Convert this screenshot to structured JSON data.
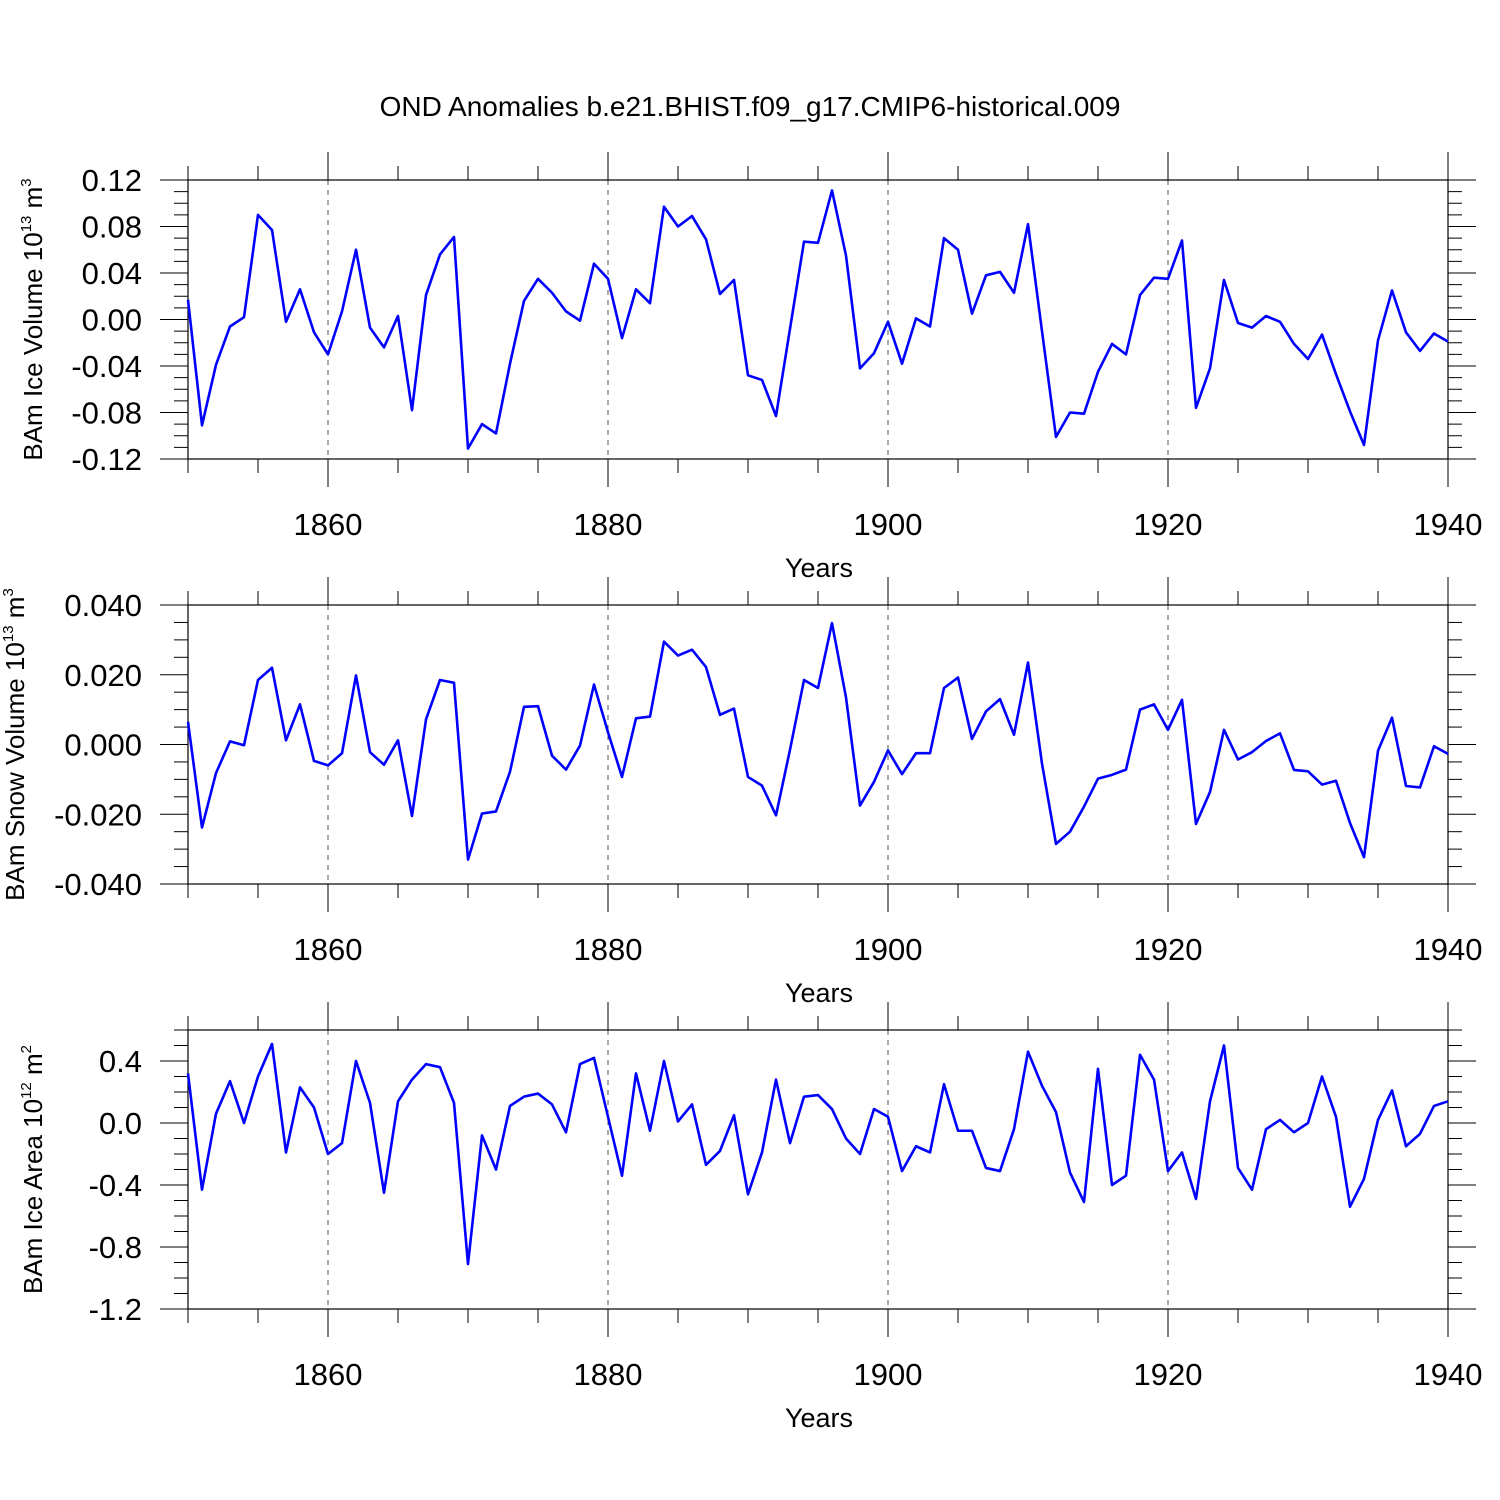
{
  "title": "OND Anomalies b.e21.BHIST.f09_g17.CMIP6-historical.009",
  "line_color": "#0000ff",
  "chart_data": [
    {
      "type": "line",
      "ylabel": {
        "main": "BAm Ice Volume 10",
        "exp": "13",
        "unit": " m",
        "unit_exp": "3"
      },
      "xlabel": "Years",
      "xlim": [
        1850,
        1940
      ],
      "xticks": [
        "1860",
        "1880",
        "1900",
        "1920",
        "1940"
      ],
      "ylim": [
        -0.12,
        0.12
      ],
      "yticks": [
        "-0.12",
        "-0.08",
        "-0.04",
        "0.00",
        "0.04",
        "0.08",
        "0.12"
      ],
      "start_year": 1850,
      "values": [
        0.017,
        -0.091,
        -0.039,
        -0.006,
        0.002,
        0.09,
        0.077,
        -0.002,
        0.026,
        -0.011,
        -0.03,
        0.007,
        0.06,
        -0.007,
        -0.024,
        0.003,
        -0.078,
        0.021,
        0.056,
        0.071,
        -0.111,
        -0.09,
        -0.098,
        -0.038,
        0.016,
        0.035,
        0.023,
        0.007,
        -0.001,
        0.048,
        0.035,
        -0.016,
        0.026,
        0.014,
        0.097,
        0.08,
        0.089,
        0.069,
        0.022,
        0.034,
        -0.048,
        -0.052,
        -0.083,
        -0.008,
        0.067,
        0.066,
        0.111,
        0.055,
        -0.042,
        -0.029,
        -0.002,
        -0.038,
        0.001,
        -0.006,
        0.07,
        0.06,
        0.005,
        0.038,
        0.041,
        0.023,
        0.082,
        -0.01,
        -0.101,
        -0.08,
        -0.081,
        -0.045,
        -0.021,
        -0.03,
        0.021,
        0.036,
        0.035,
        0.068,
        -0.076,
        -0.042,
        0.034,
        -0.003,
        -0.007,
        0.003,
        -0.002,
        -0.021,
        -0.034,
        -0.013,
        -0.047,
        -0.079,
        -0.108,
        -0.018,
        0.025,
        -0.011,
        -0.027,
        -0.012,
        -0.019
      ]
    },
    {
      "type": "line",
      "ylabel": {
        "main": "BAm Snow Volume 10",
        "exp": "13",
        "unit": " m",
        "unit_exp": "3"
      },
      "xlabel": "Years",
      "xlim": [
        1850,
        1940
      ],
      "xticks": [
        "1860",
        "1880",
        "1900",
        "1920",
        "1940"
      ],
      "ylim": [
        -0.04,
        0.04
      ],
      "yticks": [
        "-0.040",
        "-0.020",
        "0.000",
        "0.020",
        "0.040"
      ],
      "start_year": 1850,
      "values": [
        0.0065,
        -0.0238,
        -0.0082,
        0.0009,
        -0.0002,
        0.0185,
        0.022,
        0.0012,
        0.0115,
        -0.0047,
        -0.006,
        -0.0025,
        0.0198,
        -0.0022,
        -0.0058,
        0.0012,
        -0.0205,
        0.0072,
        0.0185,
        0.0177,
        -0.033,
        -0.0198,
        -0.0192,
        -0.0078,
        0.0108,
        0.011,
        -0.0032,
        -0.0072,
        -0.0003,
        0.0172,
        0.0035,
        -0.0093,
        0.0075,
        0.008,
        0.0295,
        0.0255,
        0.0272,
        0.0222,
        0.0085,
        0.0103,
        -0.0093,
        -0.0118,
        -0.0203,
        -0.0015,
        0.0185,
        0.0162,
        0.0348,
        0.0135,
        -0.0175,
        -0.0107,
        -0.0017,
        -0.0085,
        -0.0025,
        -0.0025,
        0.0162,
        0.0192,
        0.0016,
        0.0095,
        0.013,
        0.0028,
        0.0235,
        -0.0055,
        -0.0285,
        -0.025,
        -0.0178,
        -0.0098,
        -0.0087,
        -0.0072,
        0.01,
        0.0115,
        0.0042,
        0.0128,
        -0.0228,
        -0.0136,
        0.0042,
        -0.0043,
        -0.0022,
        0.001,
        0.0032,
        -0.0073,
        -0.0077,
        -0.0115,
        -0.0104,
        -0.0225,
        -0.0323,
        -0.0018,
        0.0077,
        -0.0119,
        -0.0123,
        -0.0005,
        -0.0027
      ]
    },
    {
      "type": "line",
      "ylabel": {
        "main": "BAm Ice Area 10",
        "exp": "12",
        "unit": " m",
        "unit_exp": "2"
      },
      "xlabel": "Years",
      "xlim": [
        1850,
        1940
      ],
      "xticks": [
        "1860",
        "1880",
        "1900",
        "1920",
        "1940"
      ],
      "ylim": [
        -1.2,
        0.6
      ],
      "yticks": [
        "-1.2",
        "-0.8",
        "-0.4",
        "0.0",
        "0.4"
      ],
      "start_year": 1850,
      "values": [
        0.32,
        -0.43,
        0.06,
        0.27,
        0.0,
        0.3,
        0.51,
        -0.19,
        0.23,
        0.1,
        -0.2,
        -0.13,
        0.4,
        0.13,
        -0.45,
        0.14,
        0.28,
        0.38,
        0.36,
        0.13,
        -0.91,
        -0.08,
        -0.3,
        0.11,
        0.17,
        0.19,
        0.12,
        -0.06,
        0.38,
        0.42,
        0.04,
        -0.34,
        0.32,
        -0.05,
        0.4,
        0.01,
        0.12,
        -0.27,
        -0.18,
        0.05,
        -0.46,
        -0.19,
        0.28,
        -0.13,
        0.17,
        0.18,
        0.09,
        -0.1,
        -0.2,
        0.09,
        0.04,
        -0.31,
        -0.15,
        -0.19,
        0.25,
        -0.05,
        -0.05,
        -0.29,
        -0.31,
        -0.04,
        0.46,
        0.24,
        0.07,
        -0.32,
        -0.51,
        0.35,
        -0.4,
        -0.34,
        0.44,
        0.28,
        -0.31,
        -0.19,
        -0.49,
        0.14,
        0.5,
        -0.29,
        -0.43,
        -0.04,
        0.02,
        -0.06,
        0.0,
        0.3,
        0.04,
        -0.54,
        -0.36,
        0.02,
        0.21,
        -0.15,
        -0.07,
        0.11,
        0.14
      ]
    }
  ]
}
